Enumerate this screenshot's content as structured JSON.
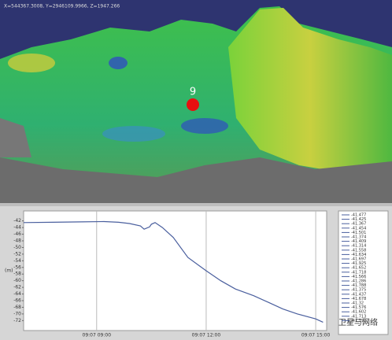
{
  "coordinates": "X=544367.3008, Y=2946109.9966, Z=1947.266",
  "marker_label": "9",
  "watermark": "卫星与网络",
  "legend_values": [
    "-41.477",
    "-41.425",
    "-41.367",
    "-41.454",
    "-41.501",
    "-41.374",
    "-41.409",
    "-41.314",
    "-41.558",
    "-41.634",
    "-41.697",
    "-41.925",
    "-41.652",
    "-41.718",
    "-41.566",
    "-41.286",
    "-41.788",
    "-41.375",
    "-41.437",
    "-41.678",
    "-41.32",
    "-41.576",
    "-41.602",
    "-41.713",
    "-41.791"
  ],
  "chart_data": {
    "type": "line",
    "y_label": "(m)",
    "color": "#4a5f9e",
    "x": [
      7.0,
      7.8,
      8.6,
      9.2,
      9.6,
      9.9,
      10.2,
      10.3,
      10.45,
      10.5,
      10.6,
      10.8,
      11.1,
      11.5,
      12.0,
      12.4,
      12.8,
      13.3,
      13.7,
      14.1,
      14.5,
      15.0,
      15.2
    ],
    "values": [
      -42.5,
      -42.4,
      -42.3,
      -42.2,
      -42.4,
      -42.8,
      -43.5,
      -44.5,
      -43.8,
      -43.0,
      -42.5,
      -44.0,
      -47.0,
      -53.0,
      -57.0,
      -60.0,
      -62.5,
      -64.5,
      -66.5,
      -68.5,
      -70.0,
      -71.5,
      -72.5
    ],
    "xlim": [
      7.0,
      15.3
    ],
    "xticks": [
      {
        "value": 9,
        "label": "09:07 09:00"
      },
      {
        "value": 12,
        "label": "09:07 12:00"
      },
      {
        "value": 15,
        "label": "09:07 15:00"
      }
    ],
    "ylim": [
      -75,
      -39
    ],
    "yticks": [
      -42,
      -44,
      -46,
      -48,
      -50,
      -52,
      -54,
      -56,
      -58,
      -60,
      -62,
      -64,
      -66,
      -68,
      -70,
      -72
    ],
    "grid": true
  }
}
